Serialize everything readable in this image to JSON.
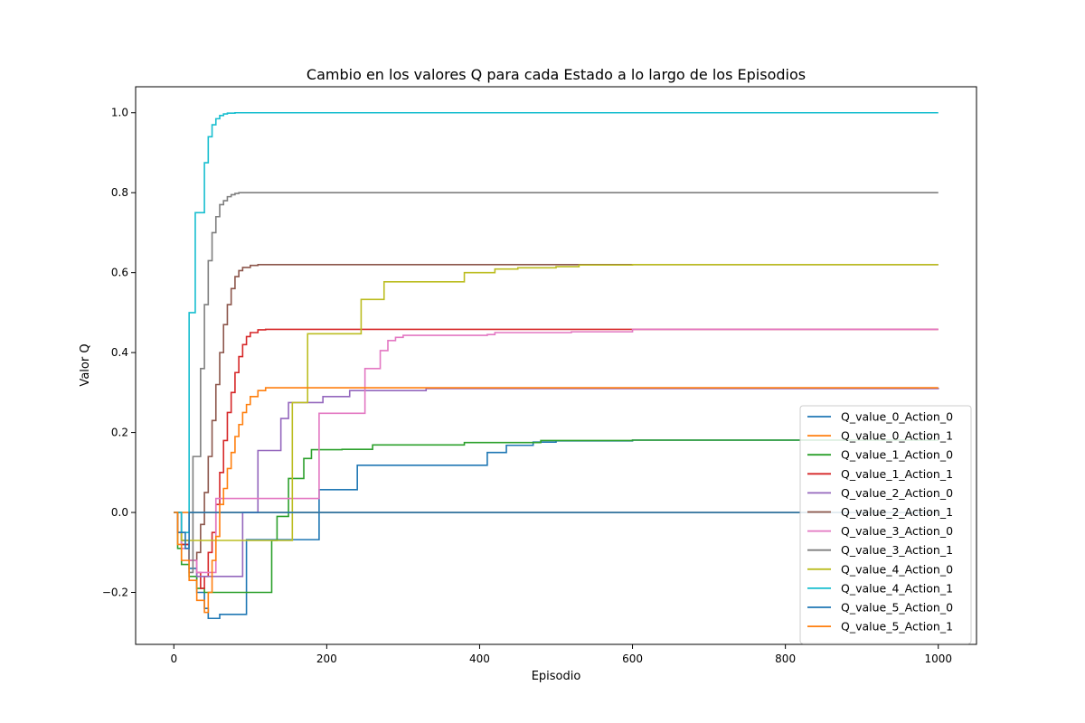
{
  "chart_data": {
    "type": "line",
    "title": "Cambio en los valores Q para cada Estado a lo largo de los Episodios",
    "xlabel": "Episodio",
    "ylabel": "Valor Q",
    "xlim": [
      -50,
      1050
    ],
    "ylim": [
      -0.33,
      1.065
    ],
    "xticks": [
      0,
      200,
      400,
      600,
      800,
      1000
    ],
    "yticks": [
      -0.2,
      0.0,
      0.2,
      0.4,
      0.6,
      0.8,
      1.0
    ],
    "xtick_labels": [
      "0",
      "200",
      "400",
      "600",
      "800",
      "1000"
    ],
    "ytick_labels": [
      "−0.2",
      "0.0",
      "0.2",
      "0.4",
      "0.6",
      "0.8",
      "1.0"
    ],
    "grid": false,
    "legend_position": "lower-right",
    "series": [
      {
        "name": "Q_value_0_Action_0",
        "color": "#1f77b4",
        "step": true,
        "x": [
          0,
          10,
          20,
          30,
          40,
          45,
          50,
          60,
          95,
          190,
          240,
          410,
          435,
          470,
          500,
          600,
          1000
        ],
        "y": [
          0,
          -0.08,
          -0.14,
          -0.2,
          -0.24,
          -0.265,
          -0.265,
          -0.255,
          -0.068,
          0.057,
          0.118,
          0.15,
          0.168,
          0.176,
          0.179,
          0.181,
          0.181
        ]
      },
      {
        "name": "Q_value_0_Action_1",
        "color": "#ff7f0e",
        "step": true,
        "x": [
          0,
          1000
        ],
        "y": [
          0,
          0
        ]
      },
      {
        "name": "Q_value_1_Action_0",
        "color": "#2ca02c",
        "step": true,
        "x": [
          0,
          5,
          10,
          20,
          30,
          40,
          50,
          125,
          128,
          135,
          150,
          160,
          170,
          180,
          220,
          260,
          380,
          480,
          600,
          1000
        ],
        "y": [
          0,
          -0.09,
          -0.13,
          -0.16,
          -0.19,
          -0.2,
          -0.2,
          -0.2,
          -0.07,
          -0.01,
          0.085,
          0.085,
          0.135,
          0.157,
          0.158,
          0.169,
          0.175,
          0.18,
          0.181,
          0.181
        ]
      },
      {
        "name": "Q_value_1_Action_1",
        "color": "#d62728",
        "step": true,
        "x": [
          0,
          5,
          10,
          20,
          30,
          35,
          40,
          45,
          50,
          55,
          60,
          65,
          70,
          75,
          80,
          85,
          90,
          95,
          100,
          110,
          120,
          1000
        ],
        "y": [
          0,
          -0.05,
          -0.08,
          -0.12,
          -0.15,
          -0.19,
          -0.16,
          -0.1,
          -0.05,
          0.02,
          0.1,
          0.18,
          0.25,
          0.3,
          0.35,
          0.39,
          0.42,
          0.44,
          0.45,
          0.457,
          0.458,
          0.458
        ]
      },
      {
        "name": "Q_value_2_Action_0",
        "color": "#9467bd",
        "step": true,
        "x": [
          0,
          10,
          20,
          30,
          70,
          90,
          100,
          110,
          130,
          140,
          150,
          170,
          195,
          230,
          330,
          1000
        ],
        "y": [
          0,
          -0.09,
          -0.12,
          -0.16,
          -0.16,
          0.0,
          0.0,
          0.155,
          0.155,
          0.235,
          0.275,
          0.275,
          0.29,
          0.305,
          0.31,
          0.312
        ]
      },
      {
        "name": "Q_value_2_Action_1",
        "color": "#8c564b",
        "step": true,
        "x": [
          0,
          10,
          20,
          30,
          35,
          40,
          45,
          50,
          55,
          60,
          65,
          70,
          75,
          80,
          85,
          90,
          100,
          110,
          1000
        ],
        "y": [
          0,
          -0.07,
          -0.12,
          -0.1,
          -0.03,
          0.05,
          0.14,
          0.23,
          0.32,
          0.4,
          0.47,
          0.52,
          0.56,
          0.59,
          0.605,
          0.613,
          0.618,
          0.62,
          0.62
        ]
      },
      {
        "name": "Q_value_3_Action_0",
        "color": "#e377c2",
        "step": true,
        "x": [
          0,
          10,
          20,
          30,
          40,
          55,
          65,
          95,
          190,
          245,
          250,
          270,
          280,
          290,
          300,
          410,
          420,
          520,
          600,
          1000
        ],
        "y": [
          0,
          -0.09,
          -0.12,
          -0.15,
          -0.15,
          0.035,
          0.035,
          0.035,
          0.248,
          0.248,
          0.36,
          0.405,
          0.43,
          0.438,
          0.443,
          0.445,
          0.45,
          0.452,
          0.458,
          0.458
        ]
      },
      {
        "name": "Q_value_3_Action_1",
        "color": "#7f7f7f",
        "step": true,
        "x": [
          0,
          10,
          20,
          25,
          30,
          35,
          40,
          45,
          50,
          55,
          60,
          65,
          70,
          75,
          80,
          85,
          90,
          100,
          1000
        ],
        "y": [
          0,
          -0.07,
          -0.15,
          0.14,
          0.14,
          0.36,
          0.52,
          0.63,
          0.7,
          0.74,
          0.77,
          0.78,
          0.79,
          0.795,
          0.798,
          0.8,
          0.8,
          0.8,
          0.8
        ]
      },
      {
        "name": "Q_value_4_Action_0",
        "color": "#bcbd22",
        "step": true,
        "x": [
          0,
          5,
          10,
          15,
          155,
          175,
          245,
          275,
          380,
          420,
          450,
          500,
          530,
          600,
          1000
        ],
        "y": [
          0,
          -0.05,
          -0.07,
          -0.07,
          0.275,
          0.447,
          0.533,
          0.577,
          0.6,
          0.609,
          0.612,
          0.615,
          0.619,
          0.62,
          0.62
        ]
      },
      {
        "name": "Q_value_4_Action_1",
        "color": "#17becf",
        "step": true,
        "x": [
          0,
          10,
          20,
          28,
          35,
          40,
          45,
          50,
          55,
          60,
          65,
          70,
          80,
          90,
          1000
        ],
        "y": [
          0,
          -0.05,
          0.5,
          0.75,
          0.75,
          0.875,
          0.94,
          0.97,
          0.985,
          0.993,
          0.997,
          0.999,
          1.0,
          1.0,
          1.0
        ]
      },
      {
        "name": "Q_value_5_Action_0",
        "color": "#1f77b4",
        "step": true,
        "x": [
          0,
          5,
          15,
          20,
          1000
        ],
        "y": [
          0,
          -0.05,
          -0.09,
          0,
          0
        ]
      },
      {
        "name": "Q_value_5_Action_1",
        "color": "#ff7f0e",
        "step": true,
        "x": [
          0,
          5,
          10,
          20,
          30,
          40,
          45,
          50,
          55,
          60,
          65,
          70,
          75,
          80,
          85,
          90,
          95,
          100,
          110,
          120,
          1000
        ],
        "y": [
          0,
          -0.08,
          -0.12,
          -0.17,
          -0.22,
          -0.25,
          -0.2,
          -0.12,
          -0.06,
          0.02,
          0.06,
          0.11,
          0.15,
          0.19,
          0.22,
          0.25,
          0.27,
          0.29,
          0.305,
          0.312,
          0.312
        ]
      }
    ]
  }
}
